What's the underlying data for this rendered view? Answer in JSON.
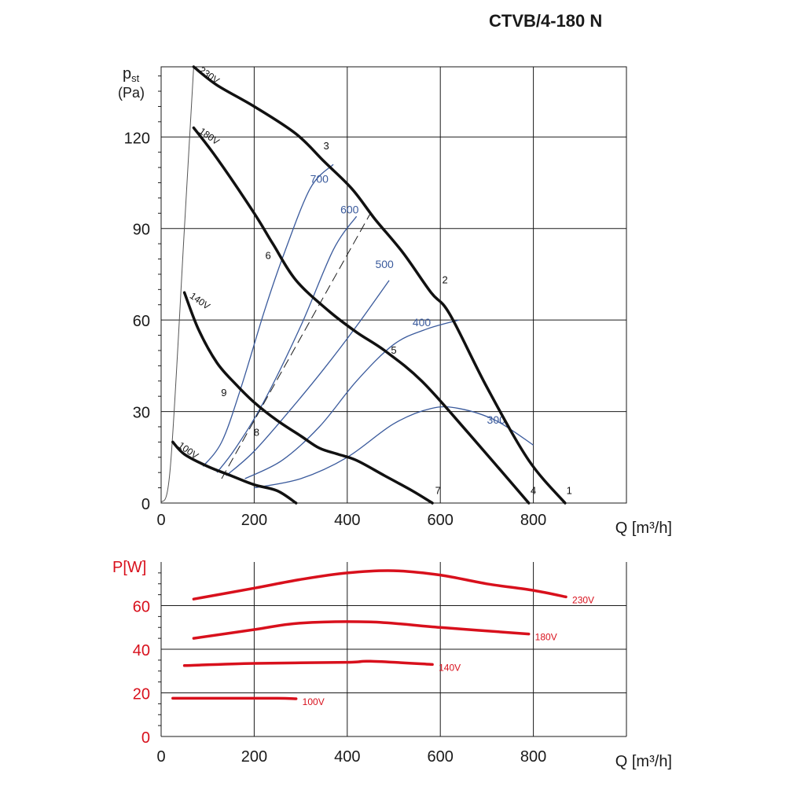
{
  "title": "CTVB/4-180 N",
  "chart_data": [
    {
      "type": "line",
      "name": "pressure",
      "ylabel_main": "p",
      "ylabel_sub": "st",
      "ylabel_unit": "(Pa)",
      "xlabel": "Q [m³/h]",
      "xlim": [
        0,
        1000
      ],
      "ylim": [
        0,
        143
      ],
      "xticks": [
        0,
        200,
        400,
        600,
        800
      ],
      "yticks": [
        0,
        30,
        60,
        90,
        120
      ],
      "grid": true,
      "series": [
        {
          "name": "230V",
          "points": [
            [
              70,
              143
            ],
            [
              120,
              137
            ],
            [
              200,
              130
            ],
            [
              290,
              121
            ],
            [
              350,
              112
            ],
            [
              410,
              103
            ],
            [
              460,
              93
            ],
            [
              520,
              82
            ],
            [
              580,
              69
            ],
            [
              620,
              62
            ],
            [
              700,
              38
            ],
            [
              790,
              14
            ],
            [
              868,
              0
            ]
          ]
        },
        {
          "name": "180V",
          "points": [
            [
              70,
              123
            ],
            [
              120,
              113
            ],
            [
              200,
              95
            ],
            [
              240,
              85
            ],
            [
              290,
              73
            ],
            [
              360,
              63
            ],
            [
              420,
              56
            ],
            [
              480,
              50
            ],
            [
              560,
              40
            ],
            [
              660,
              23
            ],
            [
              790,
              0
            ]
          ]
        },
        {
          "name": "140V",
          "points": [
            [
              50,
              69
            ],
            [
              80,
              57
            ],
            [
              120,
              46
            ],
            [
              160,
              39
            ],
            [
              200,
              33
            ],
            [
              250,
              27
            ],
            [
              300,
              22
            ],
            [
              340,
              18
            ],
            [
              380,
              16
            ],
            [
              420,
              14
            ],
            [
              480,
              9
            ],
            [
              540,
              4
            ],
            [
              583,
              0
            ]
          ]
        },
        {
          "name": "100V",
          "points": [
            [
              25,
              20
            ],
            [
              50,
              16
            ],
            [
              100,
              12
            ],
            [
              150,
              9
            ],
            [
              200,
              6
            ],
            [
              250,
              4
            ],
            [
              290,
              0
            ]
          ]
        }
      ],
      "point_labels": [
        {
          "label": "1",
          "x": 877,
          "y": 3
        },
        {
          "label": "2",
          "x": 610,
          "y": 72
        },
        {
          "label": "3",
          "x": 355,
          "y": 116
        },
        {
          "label": "4",
          "x": 800,
          "y": 3
        },
        {
          "label": "5",
          "x": 500,
          "y": 49
        },
        {
          "label": "6",
          "x": 230,
          "y": 80
        },
        {
          "label": "7",
          "x": 595,
          "y": 3
        },
        {
          "label": "8",
          "x": 205,
          "y": 22
        },
        {
          "label": "9",
          "x": 135,
          "y": 35
        }
      ],
      "rpm_curves": [
        {
          "label": "700",
          "points": [
            [
              90,
              12
            ],
            [
              130,
              20
            ],
            [
              170,
              37
            ],
            [
              220,
              62
            ],
            [
              260,
              80
            ],
            [
              320,
              103
            ],
            [
              370,
              111
            ]
          ],
          "label_x": 340,
          "label_y": 105
        },
        {
          "label": "600",
          "points": [
            [
              120,
              10
            ],
            [
              160,
              18
            ],
            [
              220,
              33
            ],
            [
              300,
              58
            ],
            [
              370,
              83
            ],
            [
              420,
              94
            ]
          ],
          "label_x": 405,
          "label_y": 95
        },
        {
          "label": "500",
          "points": [
            [
              140,
              9
            ],
            [
              200,
              17
            ],
            [
              280,
              31
            ],
            [
              350,
              44
            ],
            [
              420,
              58
            ],
            [
              490,
              73
            ]
          ],
          "label_x": 480,
          "label_y": 77
        },
        {
          "label": "400",
          "points": [
            [
              180,
              8
            ],
            [
              260,
              14
            ],
            [
              340,
              25
            ],
            [
              420,
              40
            ],
            [
              500,
              52
            ],
            [
              570,
              57
            ],
            [
              640,
              60
            ]
          ],
          "label_x": 560,
          "label_y": 58
        },
        {
          "label": "300",
          "points": [
            [
              200,
              5
            ],
            [
              300,
              8
            ],
            [
              400,
              15
            ],
            [
              500,
              26
            ],
            [
              580,
              31
            ],
            [
              640,
              31
            ],
            [
              720,
              27
            ],
            [
              800,
              19
            ]
          ],
          "label_x": 720,
          "label_y": 26
        }
      ],
      "dashed_line": [
        [
          130,
          8
        ],
        [
          450,
          95
        ]
      ],
      "thin_line": [
        [
          0,
          0
        ],
        [
          20,
          12
        ],
        [
          50,
          90
        ],
        [
          70,
          143
        ]
      ]
    },
    {
      "type": "line",
      "name": "power",
      "ylabel": "P[W]",
      "xlabel": "Q [m³/h]",
      "xlim": [
        0,
        1000
      ],
      "ylim": [
        0,
        80
      ],
      "xticks": [
        0,
        200,
        400,
        600,
        800
      ],
      "yticks": [
        0,
        20,
        40,
        60
      ],
      "grid": true,
      "color": "#d8101c",
      "series": [
        {
          "name": "230V",
          "points": [
            [
              70,
              63
            ],
            [
              200,
              68
            ],
            [
              300,
              72
            ],
            [
              400,
              75
            ],
            [
              500,
              76
            ],
            [
              600,
              74
            ],
            [
              700,
              70
            ],
            [
              800,
              67
            ],
            [
              870,
              64
            ]
          ]
        },
        {
          "name": "180V",
          "points": [
            [
              70,
              45
            ],
            [
              200,
              49
            ],
            [
              300,
              52
            ],
            [
              450,
              52.5
            ],
            [
              600,
              50
            ],
            [
              790,
              47
            ]
          ]
        },
        {
          "name": "140V",
          "points": [
            [
              50,
              32.5
            ],
            [
              200,
              33.5
            ],
            [
              400,
              34
            ],
            [
              450,
              34.5
            ],
            [
              583,
              33
            ]
          ]
        },
        {
          "name": "100V",
          "points": [
            [
              25,
              17.5
            ],
            [
              150,
              17.5
            ],
            [
              250,
              17.5
            ],
            [
              290,
              17.3
            ]
          ]
        }
      ]
    }
  ]
}
